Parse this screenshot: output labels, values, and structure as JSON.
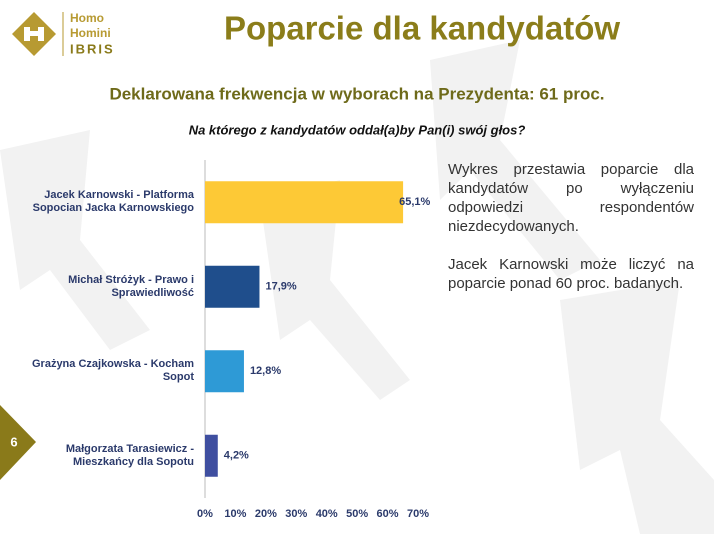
{
  "logo": {
    "line1": "Homo",
    "line2": "Homini",
    "line3": "IBRIS"
  },
  "page_number": "6",
  "description": [
    "Wykres przestawia poparcie dla kandydatów po wyłączeniu odpowiedzi respondentów niezdecydowanych.",
    "Jacek Karnowski może liczyć na poparcie ponad 60 proc. badanych."
  ],
  "chart_data": {
    "type": "bar",
    "orientation": "horizontal",
    "title": "Poparcie dla kandydatów",
    "subtitle": "Deklarowana frekwencja w wyborach na Prezydenta: 61 proc.",
    "question": "Na którego z kandydatów oddał(a)by Pan(i) swój głos?",
    "categories": [
      "Jacek Karnowski - Platforma Sopocian Jacka Karnowskiego",
      "Michał Stróżyk - Prawo i Sprawiedliwość",
      "Grażyna Czajkowska - Kocham Sopot",
      "Małgorzata Tarasiewicz - Mieszkańcy dla Sopotu"
    ],
    "values": [
      65.1,
      17.9,
      12.8,
      4.2
    ],
    "value_labels": [
      "65,1%",
      "17,9%",
      "12,8%",
      "4,2%"
    ],
    "colors": [
      "#fdc936",
      "#1f4e8c",
      "#2e9ad6",
      "#3f4fa0"
    ],
    "xlim": [
      0,
      70
    ],
    "xticks": [
      {
        "value": 0,
        "label": "0%"
      },
      {
        "value": 10,
        "label": "10%"
      },
      {
        "value": 20,
        "label": "20%"
      },
      {
        "value": 30,
        "label": "30%"
      },
      {
        "value": 40,
        "label": "40%"
      },
      {
        "value": 50,
        "label": "50%"
      },
      {
        "value": 60,
        "label": "60%"
      },
      {
        "value": 70,
        "label": "70%"
      }
    ],
    "grid": false
  }
}
